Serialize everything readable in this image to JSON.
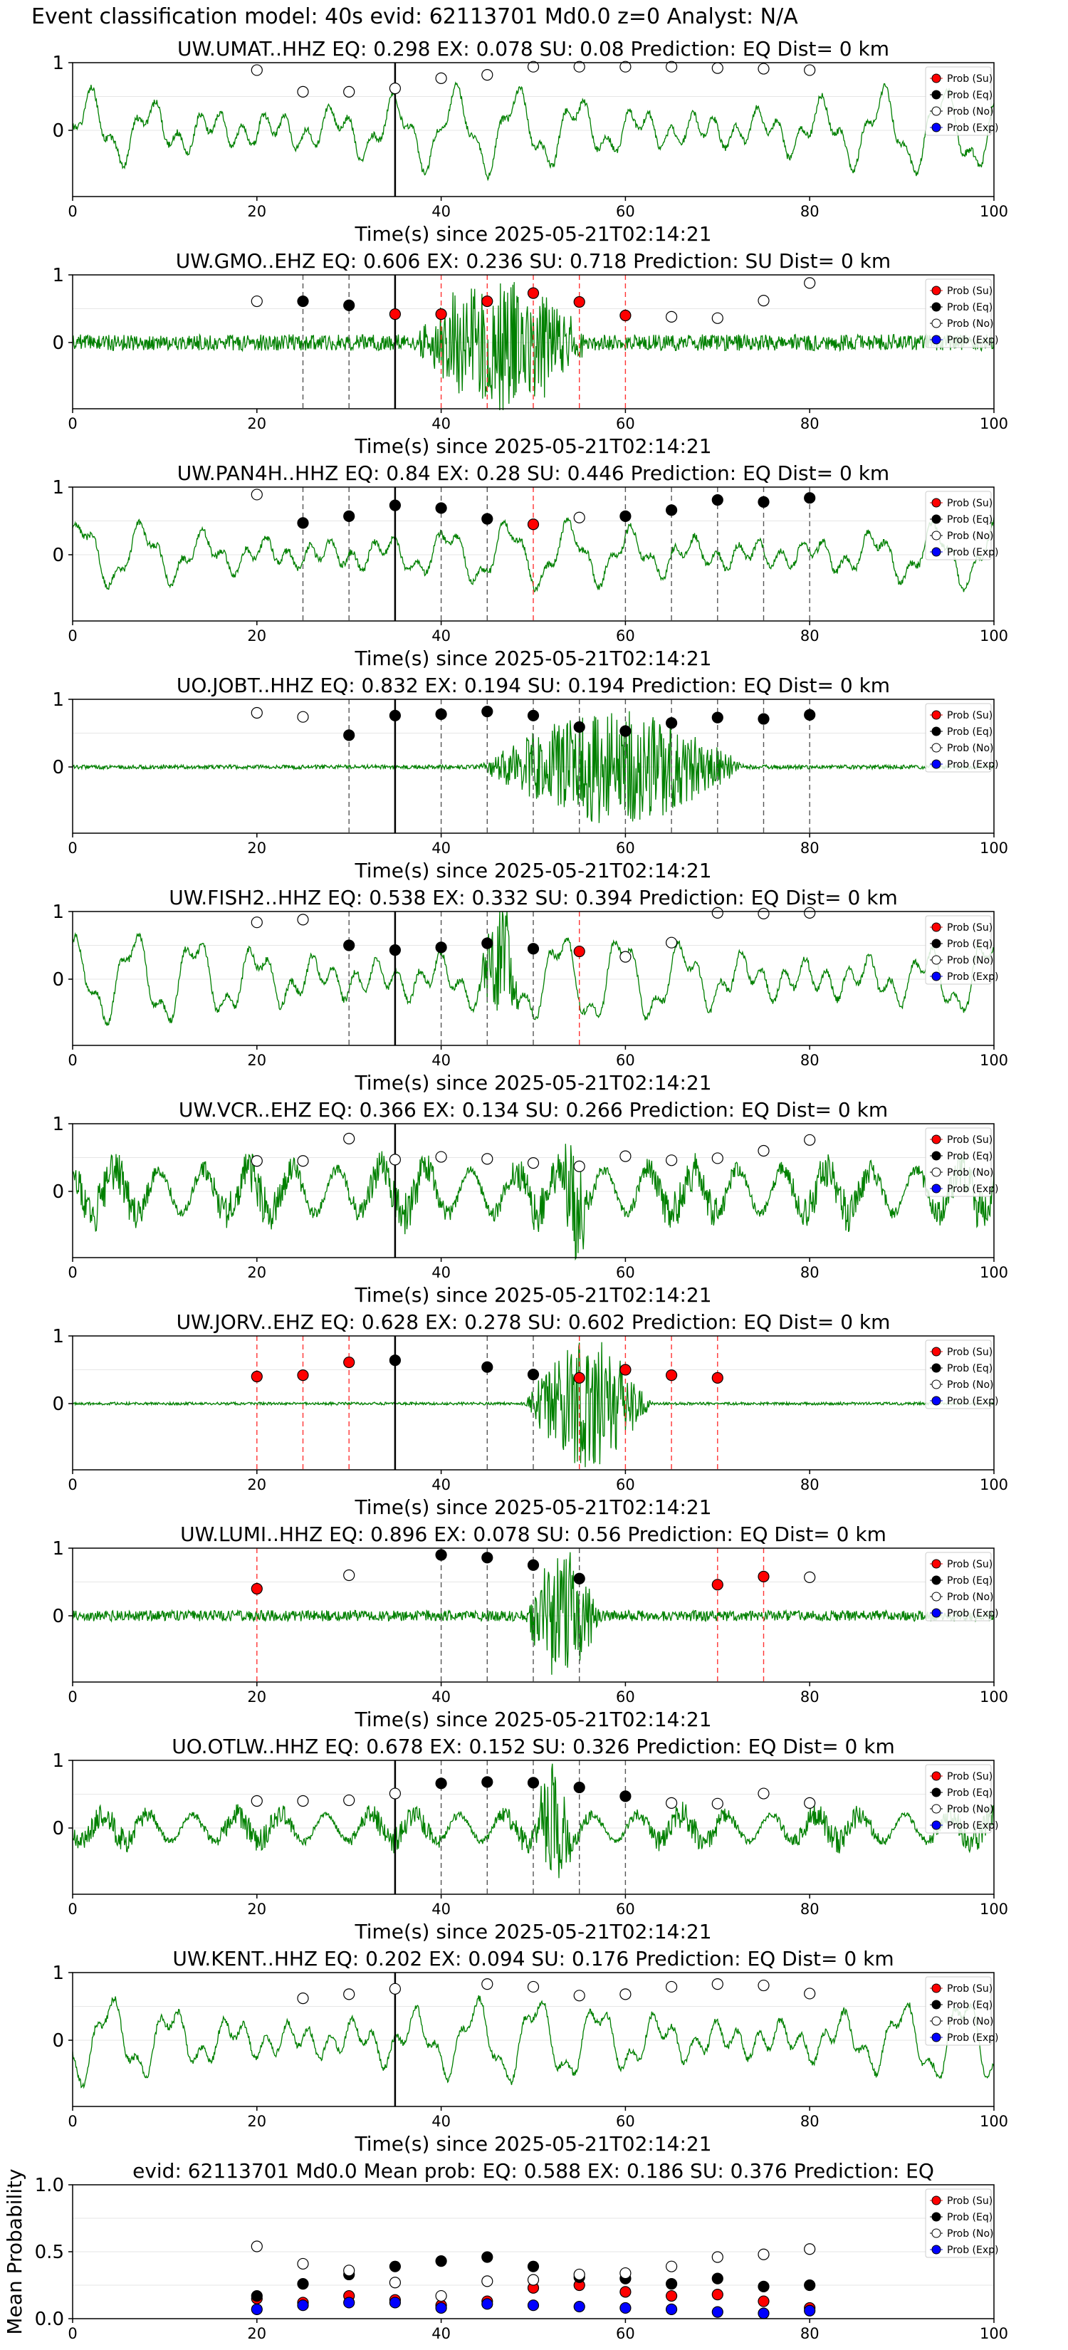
{
  "figure_title": "Event classification model: 40s evid: 62113701 Md0.0 z=0 Analyst: N/A",
  "colors": {
    "trace": "#008000",
    "su": "#ff0000",
    "eq": "#000000",
    "no": "#ffffff",
    "exp": "#0000ff",
    "vline_eq": "#555555",
    "vline_su": "#ff3333"
  },
  "legend": [
    "Prob (Su)",
    "Prob (Eq)",
    "Prob (No)",
    "Prob (Exp)"
  ],
  "chart_data": [
    {
      "type": "line",
      "title": "UW.UMAT..HHZ   EQ: 0.298  EX: 0.078  SU: 0.08   Prediction: EQ    Dist= 0 km",
      "xlabel": "Time(s) since 2025-05-21T02:14:21",
      "ylabel": "",
      "xlim": [
        0,
        100
      ],
      "xticks": [
        "0",
        "20",
        "40",
        "60",
        "80",
        "100"
      ],
      "yticks": [
        "1",
        "0"
      ],
      "trace_style": "long",
      "trace_amplitude": 0.7,
      "trace_seed": 1,
      "burst": null,
      "reference_line_x": 35,
      "points": [
        {
          "x": 20,
          "class": "no",
          "y": 0.89
        },
        {
          "x": 25,
          "class": "no",
          "y": 0.57
        },
        {
          "x": 30,
          "class": "no",
          "y": 0.57
        },
        {
          "x": 35,
          "class": "no",
          "y": 0.62
        },
        {
          "x": 40,
          "class": "no",
          "y": 0.77
        },
        {
          "x": 45,
          "class": "no",
          "y": 0.82
        },
        {
          "x": 50,
          "class": "no",
          "y": 0.94
        },
        {
          "x": 55,
          "class": "no",
          "y": 0.94
        },
        {
          "x": 60,
          "class": "no",
          "y": 0.94
        },
        {
          "x": 65,
          "class": "no",
          "y": 0.94
        },
        {
          "x": 70,
          "class": "no",
          "y": 0.92
        },
        {
          "x": 75,
          "class": "no",
          "y": 0.91
        },
        {
          "x": 80,
          "class": "no",
          "y": 0.89
        }
      ]
    },
    {
      "type": "line",
      "title": "UW.GMO..EHZ   EQ: 0.606  EX: 0.236  SU: 0.718   Prediction: SU    Dist= 0 km",
      "xlabel": "Time(s) since 2025-05-21T02:14:21",
      "ylabel": "",
      "xlim": [
        0,
        100
      ],
      "xticks": [
        "0",
        "20",
        "40",
        "60",
        "80",
        "100"
      ],
      "yticks": [
        "1",
        "0"
      ],
      "trace_style": "noise",
      "trace_amplitude": 0.12,
      "trace_seed": 2,
      "burst": {
        "start": 37,
        "end": 62,
        "amplitude": 1.0
      },
      "reference_line_x": 35,
      "points": [
        {
          "x": 20,
          "class": "no",
          "y": 0.61
        },
        {
          "x": 25,
          "class": "eq",
          "y": 0.61
        },
        {
          "x": 30,
          "class": "eq",
          "y": 0.55
        },
        {
          "x": 35,
          "class": "su",
          "y": 0.42
        },
        {
          "x": 40,
          "class": "su",
          "y": 0.42
        },
        {
          "x": 45,
          "class": "su",
          "y": 0.61
        },
        {
          "x": 50,
          "class": "su",
          "y": 0.73
        },
        {
          "x": 55,
          "class": "su",
          "y": 0.6
        },
        {
          "x": 60,
          "class": "su",
          "y": 0.4
        },
        {
          "x": 65,
          "class": "no",
          "y": 0.38
        },
        {
          "x": 70,
          "class": "no",
          "y": 0.36
        },
        {
          "x": 75,
          "class": "no",
          "y": 0.62
        },
        {
          "x": 80,
          "class": "no",
          "y": 0.88
        }
      ]
    },
    {
      "type": "line",
      "title": "UW.PAN4H..HHZ   EQ: 0.84  EX: 0.28  SU: 0.446   Prediction: EQ    Dist= 0 km",
      "xlabel": "Time(s) since 2025-05-21T02:14:21",
      "ylabel": "",
      "xlim": [
        0,
        100
      ],
      "xticks": [
        "0",
        "20",
        "40",
        "60",
        "80",
        "100"
      ],
      "yticks": [
        "1",
        "0"
      ],
      "trace_style": "long",
      "trace_amplitude": 0.55,
      "trace_seed": 3,
      "burst": null,
      "reference_line_x": 35,
      "points": [
        {
          "x": 20,
          "class": "no",
          "y": 0.89
        },
        {
          "x": 25,
          "class": "eq",
          "y": 0.47
        },
        {
          "x": 30,
          "class": "eq",
          "y": 0.57
        },
        {
          "x": 35,
          "class": "eq",
          "y": 0.73
        },
        {
          "x": 40,
          "class": "eq",
          "y": 0.69
        },
        {
          "x": 45,
          "class": "eq",
          "y": 0.53
        },
        {
          "x": 50,
          "class": "su",
          "y": 0.45
        },
        {
          "x": 55,
          "class": "no",
          "y": 0.55
        },
        {
          "x": 60,
          "class": "eq",
          "y": 0.57
        },
        {
          "x": 65,
          "class": "eq",
          "y": 0.66
        },
        {
          "x": 70,
          "class": "eq",
          "y": 0.81
        },
        {
          "x": 75,
          "class": "eq",
          "y": 0.78
        },
        {
          "x": 80,
          "class": "eq",
          "y": 0.84
        }
      ]
    },
    {
      "type": "line",
      "title": "UO.JOBT..HHZ   EQ: 0.832  EX: 0.194  SU: 0.194   Prediction: EQ    Dist= 0 km",
      "xlabel": "Time(s) since 2025-05-21T02:14:21",
      "ylabel": "",
      "xlim": [
        0,
        100
      ],
      "xticks": [
        "0",
        "20",
        "40",
        "60",
        "80",
        "100"
      ],
      "yticks": [
        "1",
        "0"
      ],
      "trace_style": "noise",
      "trace_amplitude": 0.03,
      "trace_seed": 4,
      "burst": {
        "start": 44,
        "end": 82,
        "amplitude": 0.85
      },
      "reference_line_x": 35,
      "points": [
        {
          "x": 20,
          "class": "no",
          "y": 0.8
        },
        {
          "x": 25,
          "class": "no",
          "y": 0.74
        },
        {
          "x": 30,
          "class": "eq",
          "y": 0.47
        },
        {
          "x": 35,
          "class": "eq",
          "y": 0.76
        },
        {
          "x": 40,
          "class": "eq",
          "y": 0.78
        },
        {
          "x": 45,
          "class": "eq",
          "y": 0.82
        },
        {
          "x": 50,
          "class": "eq",
          "y": 0.76
        },
        {
          "x": 55,
          "class": "eq",
          "y": 0.59
        },
        {
          "x": 60,
          "class": "eq",
          "y": 0.53
        },
        {
          "x": 65,
          "class": "eq",
          "y": 0.65
        },
        {
          "x": 70,
          "class": "eq",
          "y": 0.73
        },
        {
          "x": 75,
          "class": "eq",
          "y": 0.71
        },
        {
          "x": 80,
          "class": "eq",
          "y": 0.77
        }
      ]
    },
    {
      "type": "line",
      "title": "UW.FISH2..HHZ   EQ: 0.538  EX: 0.332  SU: 0.394   Prediction: EQ    Dist= 0 km",
      "xlabel": "Time(s) since 2025-05-21T02:14:21",
      "ylabel": "",
      "xlim": [
        0,
        100
      ],
      "xticks": [
        "0",
        "20",
        "40",
        "60",
        "80",
        "100"
      ],
      "yticks": [
        "1",
        "0"
      ],
      "trace_style": "long",
      "trace_amplitude": 0.75,
      "trace_seed": 5,
      "burst": {
        "start": 44,
        "end": 50,
        "amplitude": 0.8
      },
      "reference_line_x": 35,
      "points": [
        {
          "x": 20,
          "class": "no",
          "y": 0.84
        },
        {
          "x": 25,
          "class": "no",
          "y": 0.88
        },
        {
          "x": 30,
          "class": "eq",
          "y": 0.5
        },
        {
          "x": 35,
          "class": "eq",
          "y": 0.43
        },
        {
          "x": 40,
          "class": "eq",
          "y": 0.47
        },
        {
          "x": 45,
          "class": "eq",
          "y": 0.53
        },
        {
          "x": 50,
          "class": "eq",
          "y": 0.45
        },
        {
          "x": 55,
          "class": "su",
          "y": 0.41
        },
        {
          "x": 60,
          "class": "no",
          "y": 0.33
        },
        {
          "x": 65,
          "class": "no",
          "y": 0.54
        },
        {
          "x": 70,
          "class": "no",
          "y": 0.98
        },
        {
          "x": 75,
          "class": "no",
          "y": 0.97
        },
        {
          "x": 80,
          "class": "no",
          "y": 0.98
        }
      ]
    },
    {
      "type": "line",
      "title": "UW.VCR..EHZ   EQ: 0.366  EX: 0.134  SU: 0.266   Prediction: EQ    Dist= 0 km",
      "xlabel": "Time(s) since 2025-05-21T02:14:21",
      "ylabel": "",
      "xlim": [
        0,
        100
      ],
      "xticks": [
        "0",
        "20",
        "40",
        "60",
        "80",
        "100"
      ],
      "yticks": [
        "1",
        "0"
      ],
      "trace_style": "mixed",
      "trace_amplitude": 0.65,
      "trace_seed": 6,
      "burst": {
        "start": 53,
        "end": 57,
        "amplitude": 0.9
      },
      "reference_line_x": 35,
      "points": [
        {
          "x": 20,
          "class": "no",
          "y": 0.45
        },
        {
          "x": 25,
          "class": "no",
          "y": 0.45
        },
        {
          "x": 30,
          "class": "no",
          "y": 0.78
        },
        {
          "x": 35,
          "class": "no",
          "y": 0.47
        },
        {
          "x": 40,
          "class": "no",
          "y": 0.51
        },
        {
          "x": 45,
          "class": "no",
          "y": 0.48
        },
        {
          "x": 50,
          "class": "no",
          "y": 0.42
        },
        {
          "x": 55,
          "class": "no",
          "y": 0.37
        },
        {
          "x": 60,
          "class": "no",
          "y": 0.52
        },
        {
          "x": 65,
          "class": "no",
          "y": 0.46
        },
        {
          "x": 70,
          "class": "no",
          "y": 0.49
        },
        {
          "x": 75,
          "class": "no",
          "y": 0.6
        },
        {
          "x": 80,
          "class": "no",
          "y": 0.76
        }
      ]
    },
    {
      "type": "line",
      "title": "UW.JORV..EHZ   EQ: 0.628  EX: 0.278  SU: 0.602   Prediction: EQ    Dist= 0 km",
      "xlabel": "Time(s) since 2025-05-21T02:14:21",
      "ylabel": "",
      "xlim": [
        0,
        100
      ],
      "xticks": [
        "0",
        "20",
        "40",
        "60",
        "80",
        "100"
      ],
      "yticks": [
        "1",
        "0"
      ],
      "trace_style": "noise",
      "trace_amplitude": 0.02,
      "trace_seed": 7,
      "burst": {
        "start": 49,
        "end": 67,
        "amplitude": 0.95
      },
      "reference_line_x": 35,
      "points": [
        {
          "x": 20,
          "class": "su",
          "y": 0.4
        },
        {
          "x": 25,
          "class": "su",
          "y": 0.42
        },
        {
          "x": 30,
          "class": "su",
          "y": 0.61
        },
        {
          "x": 35,
          "class": "eq",
          "y": 0.64
        },
        {
          "x": 45,
          "class": "eq",
          "y": 0.54
        },
        {
          "x": 50,
          "class": "eq",
          "y": 0.43
        },
        {
          "x": 55,
          "class": "su",
          "y": 0.38
        },
        {
          "x": 60,
          "class": "su",
          "y": 0.5
        },
        {
          "x": 65,
          "class": "su",
          "y": 0.42
        },
        {
          "x": 70,
          "class": "su",
          "y": 0.38
        }
      ]
    },
    {
      "type": "line",
      "title": "UW.LUMI..HHZ   EQ: 0.896  EX: 0.078  SU: 0.56   Prediction: EQ    Dist= 0 km",
      "xlabel": "Time(s) since 2025-05-21T02:14:21",
      "ylabel": "",
      "xlim": [
        0,
        100
      ],
      "xticks": [
        "0",
        "20",
        "40",
        "60",
        "80",
        "100"
      ],
      "yticks": [
        "1",
        "0"
      ],
      "trace_style": "noise",
      "trace_amplitude": 0.08,
      "trace_seed": 8,
      "burst": {
        "start": 49,
        "end": 60,
        "amplitude": 1.0
      },
      "reference_line_x": null,
      "points": [
        {
          "x": 20,
          "class": "su",
          "y": 0.4
        },
        {
          "x": 30,
          "class": "no",
          "y": 0.6
        },
        {
          "x": 40,
          "class": "eq",
          "y": 0.9
        },
        {
          "x": 45,
          "class": "eq",
          "y": 0.86
        },
        {
          "x": 50,
          "class": "eq",
          "y": 0.75
        },
        {
          "x": 55,
          "class": "eq",
          "y": 0.55
        },
        {
          "x": 70,
          "class": "su",
          "y": 0.46
        },
        {
          "x": 75,
          "class": "su",
          "y": 0.58
        },
        {
          "x": 80,
          "class": "no",
          "y": 0.57
        }
      ]
    },
    {
      "type": "line",
      "title": "UO.OTLW..HHZ   EQ: 0.678  EX: 0.152  SU: 0.326   Prediction: EQ    Dist= 0 km",
      "xlabel": "Time(s) since 2025-05-21T02:14:21",
      "ylabel": "",
      "xlim": [
        0,
        100
      ],
      "xticks": [
        "0",
        "20",
        "40",
        "60",
        "80",
        "100"
      ],
      "yticks": [
        "1",
        "0"
      ],
      "trace_style": "mixed",
      "trace_amplitude": 0.4,
      "trace_seed": 9,
      "burst": {
        "start": 50,
        "end": 56,
        "amplitude": 0.75
      },
      "reference_line_x": 35,
      "points": [
        {
          "x": 20,
          "class": "no",
          "y": 0.4
        },
        {
          "x": 25,
          "class": "no",
          "y": 0.4
        },
        {
          "x": 30,
          "class": "no",
          "y": 0.41
        },
        {
          "x": 35,
          "class": "no",
          "y": 0.51
        },
        {
          "x": 40,
          "class": "eq",
          "y": 0.66
        },
        {
          "x": 45,
          "class": "eq",
          "y": 0.68
        },
        {
          "x": 50,
          "class": "eq",
          "y": 0.67
        },
        {
          "x": 55,
          "class": "eq",
          "y": 0.6
        },
        {
          "x": 60,
          "class": "eq",
          "y": 0.47
        },
        {
          "x": 65,
          "class": "no",
          "y": 0.37
        },
        {
          "x": 70,
          "class": "no",
          "y": 0.36
        },
        {
          "x": 75,
          "class": "no",
          "y": 0.51
        },
        {
          "x": 80,
          "class": "no",
          "y": 0.37
        }
      ]
    },
    {
      "type": "line",
      "title": "UW.KENT..HHZ   EQ: 0.202  EX: 0.094  SU: 0.176   Prediction: EQ    Dist= 0 km",
      "xlabel": "Time(s) since 2025-05-21T02:14:21",
      "ylabel": "",
      "xlim": [
        0,
        100
      ],
      "xticks": [
        "0",
        "20",
        "40",
        "60",
        "80",
        "100"
      ],
      "yticks": [
        "1",
        "0"
      ],
      "trace_style": "long",
      "trace_amplitude": 0.7,
      "trace_seed": 10,
      "burst": null,
      "reference_line_x": 35,
      "points": [
        {
          "x": 25,
          "class": "no",
          "y": 0.62
        },
        {
          "x": 30,
          "class": "no",
          "y": 0.68
        },
        {
          "x": 35,
          "class": "no",
          "y": 0.76
        },
        {
          "x": 45,
          "class": "no",
          "y": 0.83
        },
        {
          "x": 50,
          "class": "no",
          "y": 0.79
        },
        {
          "x": 55,
          "class": "no",
          "y": 0.66
        },
        {
          "x": 60,
          "class": "no",
          "y": 0.68
        },
        {
          "x": 65,
          "class": "no",
          "y": 0.79
        },
        {
          "x": 70,
          "class": "no",
          "y": 0.83
        },
        {
          "x": 75,
          "class": "no",
          "y": 0.81
        },
        {
          "x": 80,
          "class": "no",
          "y": 0.69
        }
      ]
    },
    {
      "type": "scatter",
      "title": "evid: 62113701  Md0.0   Mean prob:   EQ: 0.588  EX: 0.186  SU: 0.376   Prediction: EQ",
      "xlabel": "",
      "ylabel": "Mean Probability",
      "xlim": [
        0,
        100
      ],
      "ylim": [
        0,
        1.0
      ],
      "xticks": [
        "0",
        "20",
        "40",
        "60",
        "80",
        "100"
      ],
      "yticks": [
        "1.0",
        "0.5",
        "0.0"
      ],
      "x": [
        20,
        25,
        30,
        35,
        40,
        45,
        50,
        55,
        60,
        65,
        70,
        75,
        80
      ],
      "series": [
        {
          "name": "Prob (Su)",
          "class": "su",
          "values": [
            0.15,
            0.12,
            0.17,
            0.14,
            0.1,
            0.13,
            0.23,
            0.25,
            0.2,
            0.17,
            0.18,
            0.13,
            0.08
          ]
        },
        {
          "name": "Prob (Eq)",
          "class": "eq",
          "values": [
            0.17,
            0.26,
            0.33,
            0.39,
            0.43,
            0.46,
            0.39,
            0.31,
            0.3,
            0.26,
            0.3,
            0.24,
            0.25
          ]
        },
        {
          "name": "Prob (No)",
          "class": "no",
          "values": [
            0.54,
            0.41,
            0.36,
            0.27,
            0.17,
            0.28,
            0.29,
            0.33,
            0.34,
            0.39,
            0.46,
            0.48,
            0.52
          ]
        },
        {
          "name": "Prob (Exp)",
          "class": "exp",
          "values": [
            0.07,
            0.1,
            0.12,
            0.12,
            0.08,
            0.11,
            0.1,
            0.09,
            0.08,
            0.07,
            0.05,
            0.04,
            0.06
          ]
        }
      ]
    }
  ]
}
